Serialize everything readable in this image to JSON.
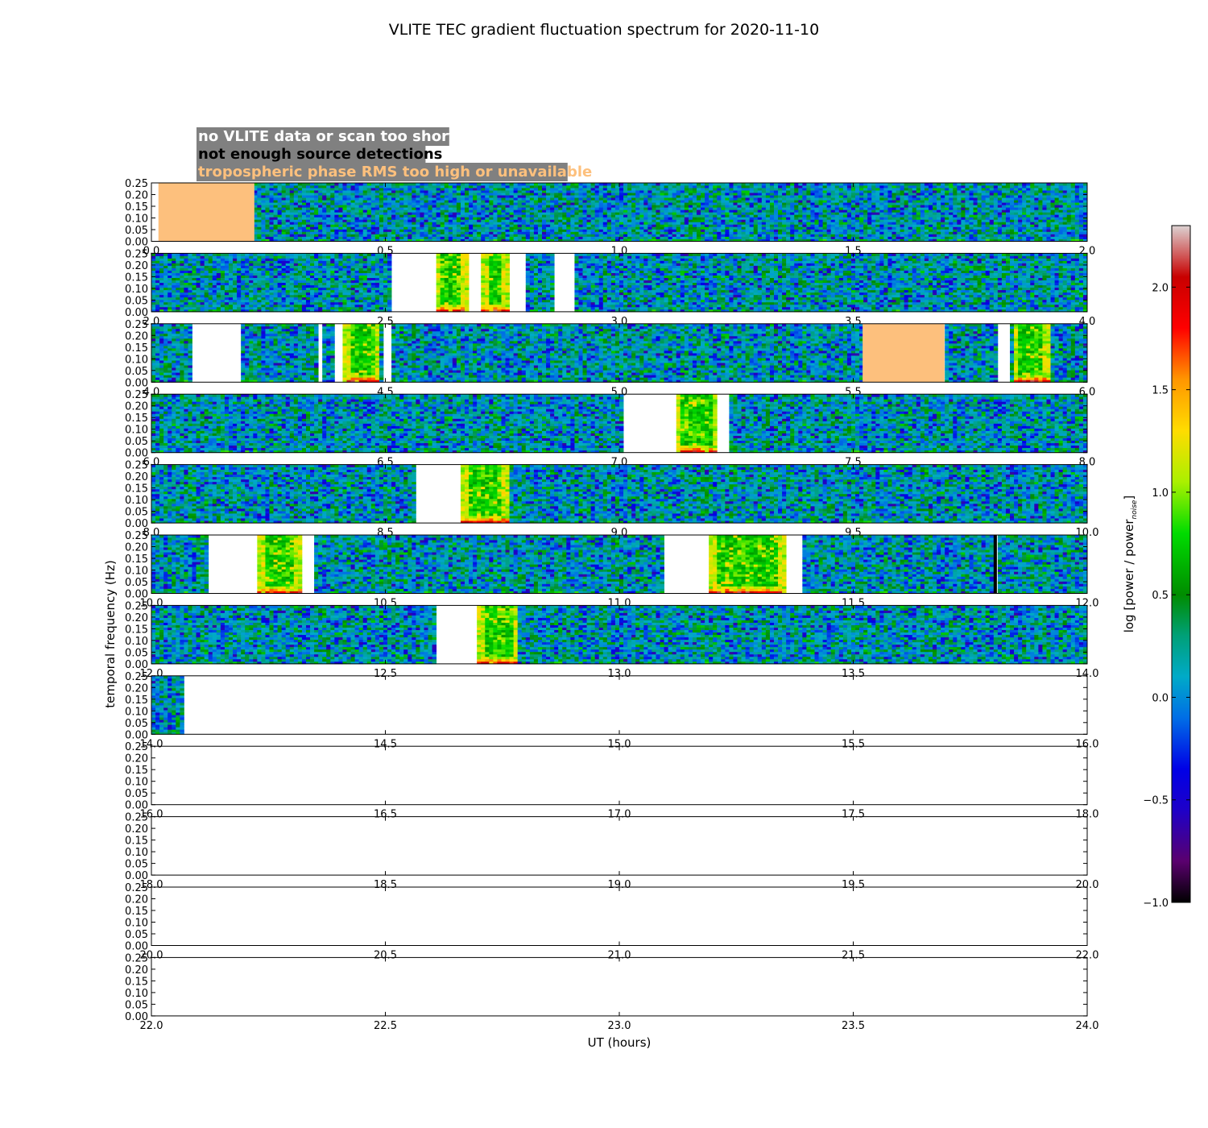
{
  "chart_data": {
    "type": "heatmap",
    "title": "VLITE TEC gradient fluctuation spectrum for 2020-11-10",
    "xlabel": "UT (hours)",
    "ylabel": "temporal frequency (Hz)",
    "ylim": [
      0,
      0.25
    ],
    "yticks": [
      "0.00",
      "0.05",
      "0.10",
      "0.15",
      "0.20",
      "0.25"
    ],
    "colorbar": {
      "label": "log [power / power",
      "label_sub": "noise",
      "label_end": "]",
      "range": [
        -1.0,
        2.3
      ],
      "ticks": [
        "−1.0",
        "−0.5",
        "0.0",
        "0.5",
        "1.0",
        "1.5",
        "2.0"
      ],
      "tick_values": [
        -1.0,
        -0.5,
        0.0,
        0.5,
        1.0,
        1.5,
        2.0
      ]
    },
    "legend": [
      {
        "text": "no VLITE data or scan too short",
        "color": "#ffffff"
      },
      {
        "text": "not enough source detections",
        "color": "#000000"
      },
      {
        "text": "tropospheric phase RMS too high or unavailable",
        "color": "#fdc07d"
      }
    ],
    "legend_background": "#808080",
    "colors": {
      "no_data": "#ffffff",
      "troposphere": "#fdc07d",
      "no_detections": "#000000"
    },
    "panels": [
      {
        "range": [
          0,
          2
        ],
        "xticks": [
          "0.0",
          "0.5",
          "1.0",
          "1.5",
          "2.0"
        ],
        "data_end": 2.0,
        "gaps": [
          [
            0.0,
            0.015
          ]
        ],
        "tropo": [
          [
            0.015,
            0.22
          ]
        ],
        "nodet": [],
        "events": []
      },
      {
        "range": [
          2,
          4
        ],
        "xticks": [
          "2.0",
          "2.5",
          "3.0",
          "3.5",
          "4.0"
        ],
        "data_end": 4.0,
        "gaps": [
          [
            2.51,
            2.605
          ],
          [
            2.68,
            2.705
          ],
          [
            2.765,
            2.8
          ],
          [
            2.86,
            2.905
          ]
        ],
        "tropo": [],
        "nodet": [],
        "events": [
          [
            2.605,
            2.675
          ],
          [
            2.705,
            2.765
          ]
        ]
      },
      {
        "range": [
          4,
          6
        ],
        "xticks": [
          "4.0",
          "4.5",
          "5.0",
          "5.5",
          "6.0"
        ],
        "data_end": 6.0,
        "gaps": [
          [
            4.09,
            4.195
          ],
          [
            4.355,
            4.365
          ],
          [
            4.39,
            4.41
          ],
          [
            4.495,
            4.51
          ],
          [
            5.81,
            5.835
          ]
        ],
        "tropo": [
          [
            5.52,
            5.695
          ]
        ],
        "nodet": [],
        "events": [
          [
            4.41,
            4.49
          ],
          [
            5.84,
            5.92
          ]
        ]
      },
      {
        "range": [
          6,
          8
        ],
        "xticks": [
          "6.0",
          "6.5",
          "7.0",
          "7.5",
          "8.0"
        ],
        "data_end": 8.0,
        "gaps": [
          [
            7.005,
            7.12
          ],
          [
            7.21,
            7.235
          ]
        ],
        "tropo": [],
        "nodet": [],
        "events": [
          [
            7.12,
            7.21
          ]
        ]
      },
      {
        "range": [
          8,
          10
        ],
        "xticks": [
          "8.0",
          "8.5",
          "9.0",
          "9.5",
          "10.0"
        ],
        "data_end": 10.0,
        "gaps": [
          [
            8.565,
            8.665
          ]
        ],
        "tropo": [],
        "nodet": [],
        "events": [
          [
            8.665,
            8.765
          ]
        ]
      },
      {
        "range": [
          10,
          12
        ],
        "xticks": [
          "10.0",
          "10.5",
          "11.0",
          "11.5",
          "12.0"
        ],
        "data_end": 12.0,
        "gaps": [
          [
            10.12,
            10.23
          ],
          [
            10.32,
            10.345
          ],
          [
            11.1,
            11.195
          ],
          [
            11.355,
            11.39
          ]
        ],
        "tropo": [],
        "nodet": [
          [
            11.8,
            11.807
          ]
        ],
        "events": [
          [
            10.23,
            10.32
          ],
          [
            11.195,
            11.355
          ]
        ]
      },
      {
        "range": [
          12,
          14
        ],
        "xticks": [
          "12.0",
          "12.5",
          "13.0",
          "13.5",
          "14.0"
        ],
        "data_end": 14.0,
        "gaps": [
          [
            12.61,
            12.7
          ]
        ],
        "tropo": [],
        "nodet": [],
        "events": [
          [
            12.7,
            12.785
          ]
        ]
      },
      {
        "range": [
          14,
          16
        ],
        "xticks": [
          "14.0",
          "14.5",
          "15.0",
          "15.5",
          "16.0"
        ],
        "data_end": 14.07,
        "gaps": [],
        "tropo": [],
        "nodet": [],
        "events": []
      },
      {
        "range": [
          16,
          18
        ],
        "xticks": [
          "16.0",
          "16.5",
          "17.0",
          "17.5",
          "18.0"
        ],
        "data_end": 16.0,
        "gaps": [],
        "tropo": [],
        "nodet": [],
        "events": []
      },
      {
        "range": [
          18,
          20
        ],
        "xticks": [
          "18.0",
          "18.5",
          "19.0",
          "19.5",
          "20.0"
        ],
        "data_end": 18.0,
        "gaps": [],
        "tropo": [],
        "nodet": [],
        "events": []
      },
      {
        "range": [
          20,
          22
        ],
        "xticks": [
          "20.0",
          "20.5",
          "21.0",
          "21.5",
          "22.0"
        ],
        "data_end": 20.0,
        "gaps": [],
        "tropo": [],
        "nodet": [],
        "events": []
      },
      {
        "range": [
          22,
          24
        ],
        "xticks": [
          "22.0",
          "22.5",
          "23.0",
          "23.5",
          "24.0"
        ],
        "data_end": 22.0,
        "gaps": [],
        "tropo": [],
        "nodet": [],
        "events": []
      }
    ]
  }
}
